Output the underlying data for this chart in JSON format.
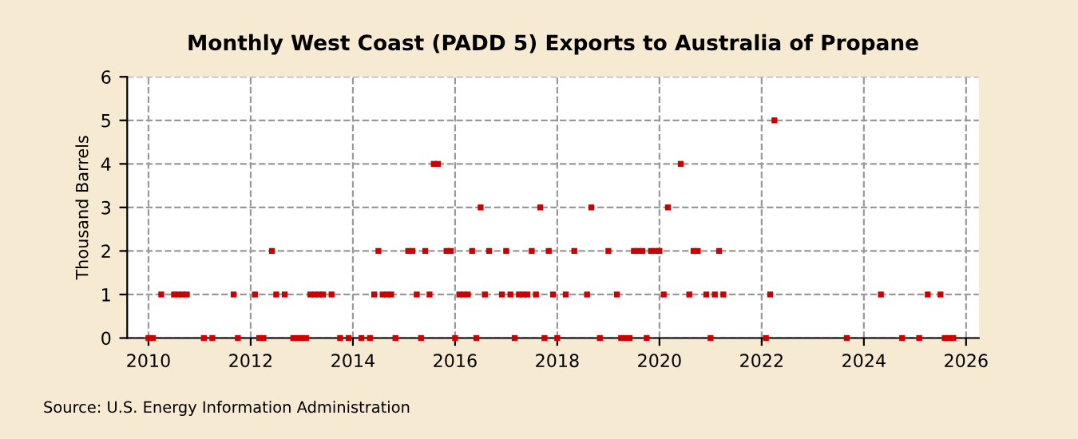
{
  "chart_data": {
    "type": "scatter",
    "title": "Monthly West Coast (PADD 5) Exports to Australia of Propane",
    "ylabel": "Thousand Barrels",
    "annotations": [
      "Source: U.S. Energy Information Administration"
    ],
    "series": [
      {
        "color": "#cc0000",
        "x": [
          "2010-01",
          "2010-02",
          "2010-04",
          "2010-07",
          "2010-08",
          "2010-09",
          "2010-10",
          "2011-02",
          "2011-04",
          "2011-09",
          "2011-10",
          "2012-02",
          "2012-03",
          "2012-04",
          "2012-06",
          "2012-07",
          "2012-09",
          "2012-11",
          "2012-12",
          "2013-01",
          "2013-02",
          "2013-03",
          "2013-04",
          "2013-05",
          "2013-06",
          "2013-08",
          "2013-10",
          "2013-12",
          "2014-03",
          "2014-05",
          "2014-06",
          "2014-07",
          "2014-08",
          "2014-09",
          "2014-10",
          "2014-11",
          "2015-02",
          "2015-03",
          "2015-04",
          "2015-05",
          "2015-06",
          "2015-07",
          "2015-08",
          "2015-09",
          "2015-11",
          "2015-12",
          "2016-01",
          "2016-02",
          "2016-03",
          "2016-04",
          "2016-05",
          "2016-06",
          "2016-07",
          "2016-08",
          "2016-09",
          "2016-12",
          "2017-01",
          "2017-02",
          "2017-03",
          "2017-04",
          "2017-05",
          "2017-06",
          "2017-07",
          "2017-08",
          "2017-09",
          "2017-10",
          "2017-11",
          "2017-12",
          "2018-01",
          "2018-03",
          "2018-05",
          "2018-08",
          "2018-09",
          "2018-11",
          "2019-01",
          "2019-03",
          "2019-04",
          "2019-05",
          "2019-06",
          "2019-07",
          "2019-08",
          "2019-09",
          "2019-10",
          "2019-11",
          "2019-12",
          "2020-01",
          "2020-02",
          "2020-03",
          "2020-06",
          "2020-08",
          "2020-09",
          "2020-10",
          "2020-12",
          "2021-01",
          "2021-02",
          "2021-03",
          "2021-04",
          "2022-02",
          "2022-03",
          "2022-04",
          "2023-09",
          "2024-05",
          "2024-10",
          "2025-02",
          "2025-04",
          "2025-07",
          "2025-08",
          "2025-09",
          "2025-10"
        ],
        "values": [
          0,
          0,
          1,
          1,
          1,
          1,
          1,
          0,
          0,
          1,
          0,
          1,
          0,
          0,
          2,
          1,
          1,
          0,
          0,
          0,
          0,
          1,
          1,
          1,
          1,
          1,
          0,
          0,
          0,
          0,
          1,
          2,
          1,
          1,
          1,
          0,
          2,
          2,
          1,
          0,
          2,
          1,
          4,
          4,
          2,
          2,
          0,
          1,
          1,
          1,
          2,
          0,
          3,
          1,
          2,
          1,
          2,
          1,
          0,
          1,
          1,
          1,
          2,
          1,
          3,
          0,
          2,
          1,
          0,
          1,
          2,
          1,
          3,
          0,
          2,
          1,
          0,
          0,
          0,
          2,
          2,
          2,
          0,
          2,
          2,
          2,
          1,
          3,
          4,
          1,
          2,
          2,
          1,
          0,
          1,
          2,
          1,
          0,
          1,
          5,
          0,
          1,
          0,
          0,
          1,
          1,
          0,
          0,
          0
        ]
      }
    ],
    "marker": "square",
    "grid": true,
    "xlim": [
      "2009-08",
      "2026-04"
    ],
    "xticks": [
      "2010",
      "2012",
      "2014",
      "2016",
      "2018",
      "2020",
      "2022",
      "2024",
      "2026"
    ],
    "ylim": [
      0,
      6
    ],
    "yticks": [
      0,
      1,
      2,
      3,
      4,
      5,
      6
    ]
  }
}
